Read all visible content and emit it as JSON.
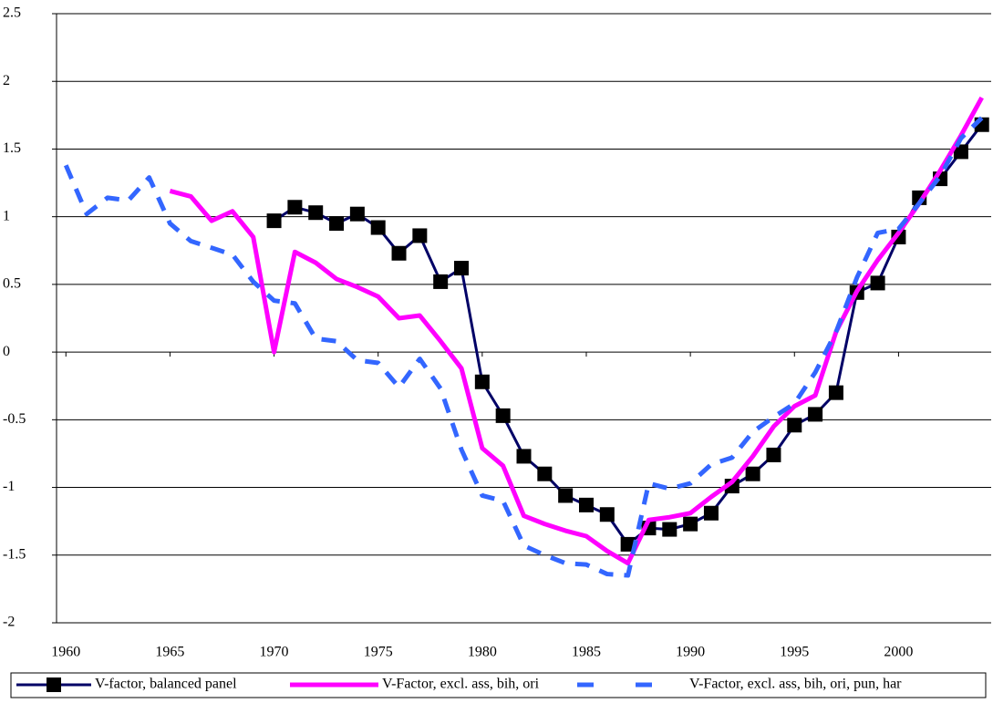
{
  "chart_data": {
    "type": "line",
    "x": [
      1960,
      1961,
      1962,
      1963,
      1964,
      1965,
      1966,
      1967,
      1968,
      1969,
      1970,
      1971,
      1972,
      1973,
      1974,
      1975,
      1976,
      1977,
      1978,
      1979,
      1980,
      1981,
      1982,
      1983,
      1984,
      1985,
      1986,
      1987,
      1988,
      1989,
      1990,
      1991,
      1992,
      1993,
      1994,
      1995,
      1996,
      1997,
      1998,
      1999,
      2000,
      2001,
      2002,
      2003,
      2004
    ],
    "xlim": [
      1959.55,
      2004.45
    ],
    "xticks": [
      1960,
      1965,
      1970,
      1975,
      1980,
      1985,
      1990,
      1995,
      2000
    ],
    "ylim": [
      -2,
      2.5
    ],
    "yticks": [
      -2,
      -1.5,
      -1,
      -0.5,
      0,
      0.5,
      1,
      1.5,
      2,
      2.5
    ],
    "grid": true,
    "legend": "bottom",
    "series": [
      {
        "name": "V-factor, balanced panel",
        "color": "#000066",
        "marker": "square",
        "dash": false,
        "values": [
          null,
          null,
          null,
          null,
          null,
          null,
          null,
          null,
          null,
          null,
          0.97,
          1.07,
          1.03,
          0.95,
          1.02,
          0.92,
          0.73,
          0.86,
          0.52,
          0.62,
          -0.22,
          -0.47,
          -0.77,
          -0.9,
          -1.06,
          -1.13,
          -1.2,
          -1.42,
          -1.3,
          -1.31,
          -1.27,
          -1.19,
          -0.99,
          -0.9,
          -0.76,
          -0.54,
          -0.46,
          -0.3,
          0.44,
          0.51,
          0.85,
          1.14,
          1.28,
          1.48,
          1.68
        ]
      },
      {
        "name": "V-Factor, excl. ass, bih, ori",
        "color": "#ff00ff",
        "marker": "none",
        "dash": false,
        "values": [
          null,
          null,
          null,
          null,
          null,
          1.19,
          1.15,
          0.97,
          1.04,
          0.85,
          0.0,
          0.74,
          0.66,
          0.54,
          0.48,
          0.41,
          0.25,
          0.27,
          0.08,
          -0.12,
          -0.71,
          -0.84,
          -1.21,
          -1.27,
          -1.32,
          -1.36,
          -1.47,
          -1.56,
          -1.24,
          -1.22,
          -1.19,
          -1.07,
          -0.96,
          -0.77,
          -0.55,
          -0.4,
          -0.32,
          0.15,
          0.45,
          0.68,
          0.88,
          1.1,
          1.34,
          1.6,
          1.88
        ]
      },
      {
        "name": "V-Factor, excl. ass, bih, ori, pun, har",
        "color": "#3366ff",
        "marker": "none",
        "dash": true,
        "values": [
          1.38,
          1.02,
          1.14,
          1.12,
          1.29,
          0.95,
          0.82,
          0.77,
          0.72,
          0.52,
          0.38,
          0.36,
          0.1,
          0.08,
          -0.06,
          -0.08,
          -0.26,
          -0.05,
          -0.27,
          -0.72,
          -1.06,
          -1.1,
          -1.43,
          -1.5,
          -1.56,
          -1.57,
          -1.64,
          -1.65,
          -0.97,
          -1.01,
          -0.97,
          -0.83,
          -0.78,
          -0.59,
          -0.48,
          -0.38,
          -0.15,
          0.15,
          0.55,
          0.88,
          0.91,
          1.1,
          1.3,
          1.58,
          1.73
        ]
      }
    ]
  }
}
